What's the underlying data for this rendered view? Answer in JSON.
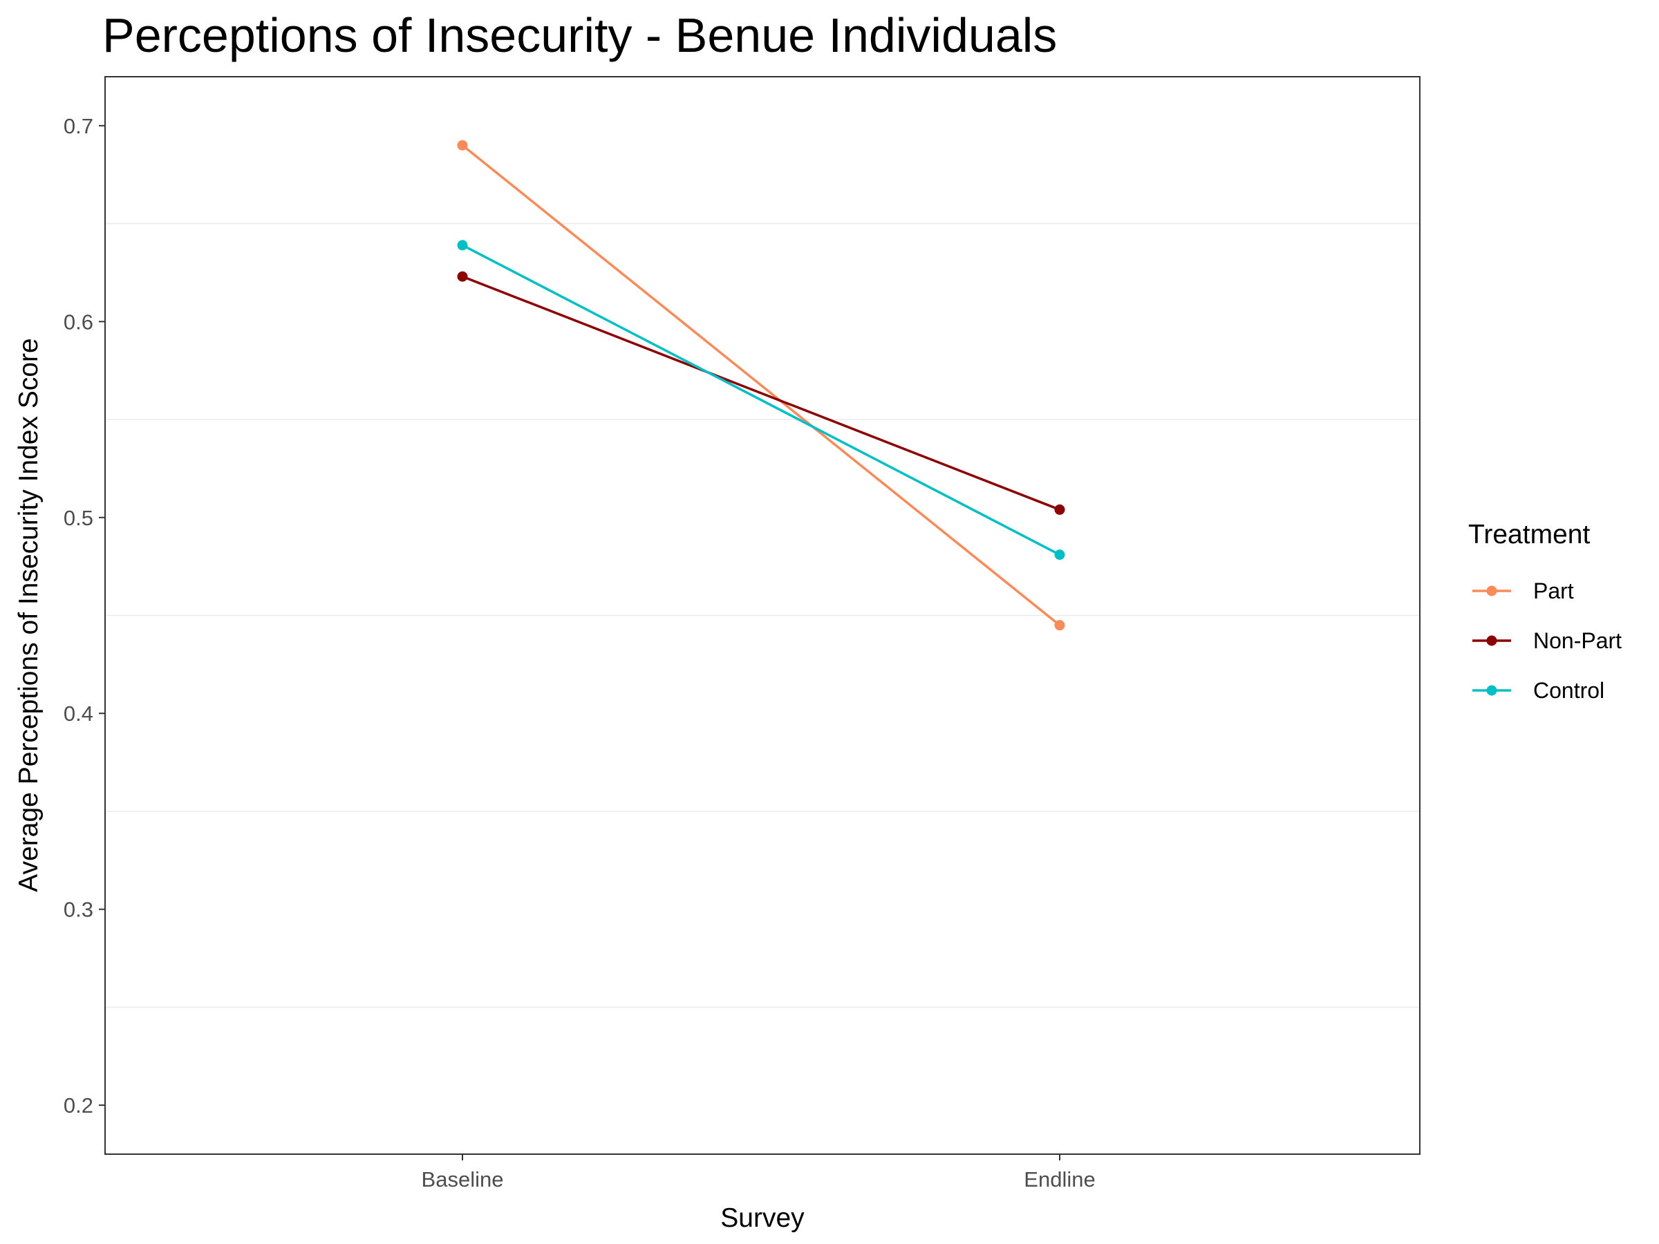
{
  "chart_data": {
    "type": "line",
    "title": "Perceptions of Insecurity - Benue Individuals",
    "xlabel": "Survey",
    "ylabel": "Average Perceptions of Insecurity Index Score",
    "categories": [
      "Baseline",
      "Endline"
    ],
    "ylim": [
      0.175,
      0.725
    ],
    "y_ticks": [
      "0.2",
      "0.3",
      "0.4",
      "0.5",
      "0.6",
      "0.7"
    ],
    "grid": "horizontal minor lines only",
    "legend": {
      "title": "Treatment",
      "position": "right"
    },
    "series": [
      {
        "name": "Part",
        "values": [
          0.69,
          0.445
        ],
        "color": "#F98B5A"
      },
      {
        "name": "Non-Part",
        "values": [
          0.623,
          0.504
        ],
        "color": "#8B0000"
      },
      {
        "name": "Control",
        "values": [
          0.639,
          0.481
        ],
        "color": "#00BFC4"
      }
    ]
  }
}
